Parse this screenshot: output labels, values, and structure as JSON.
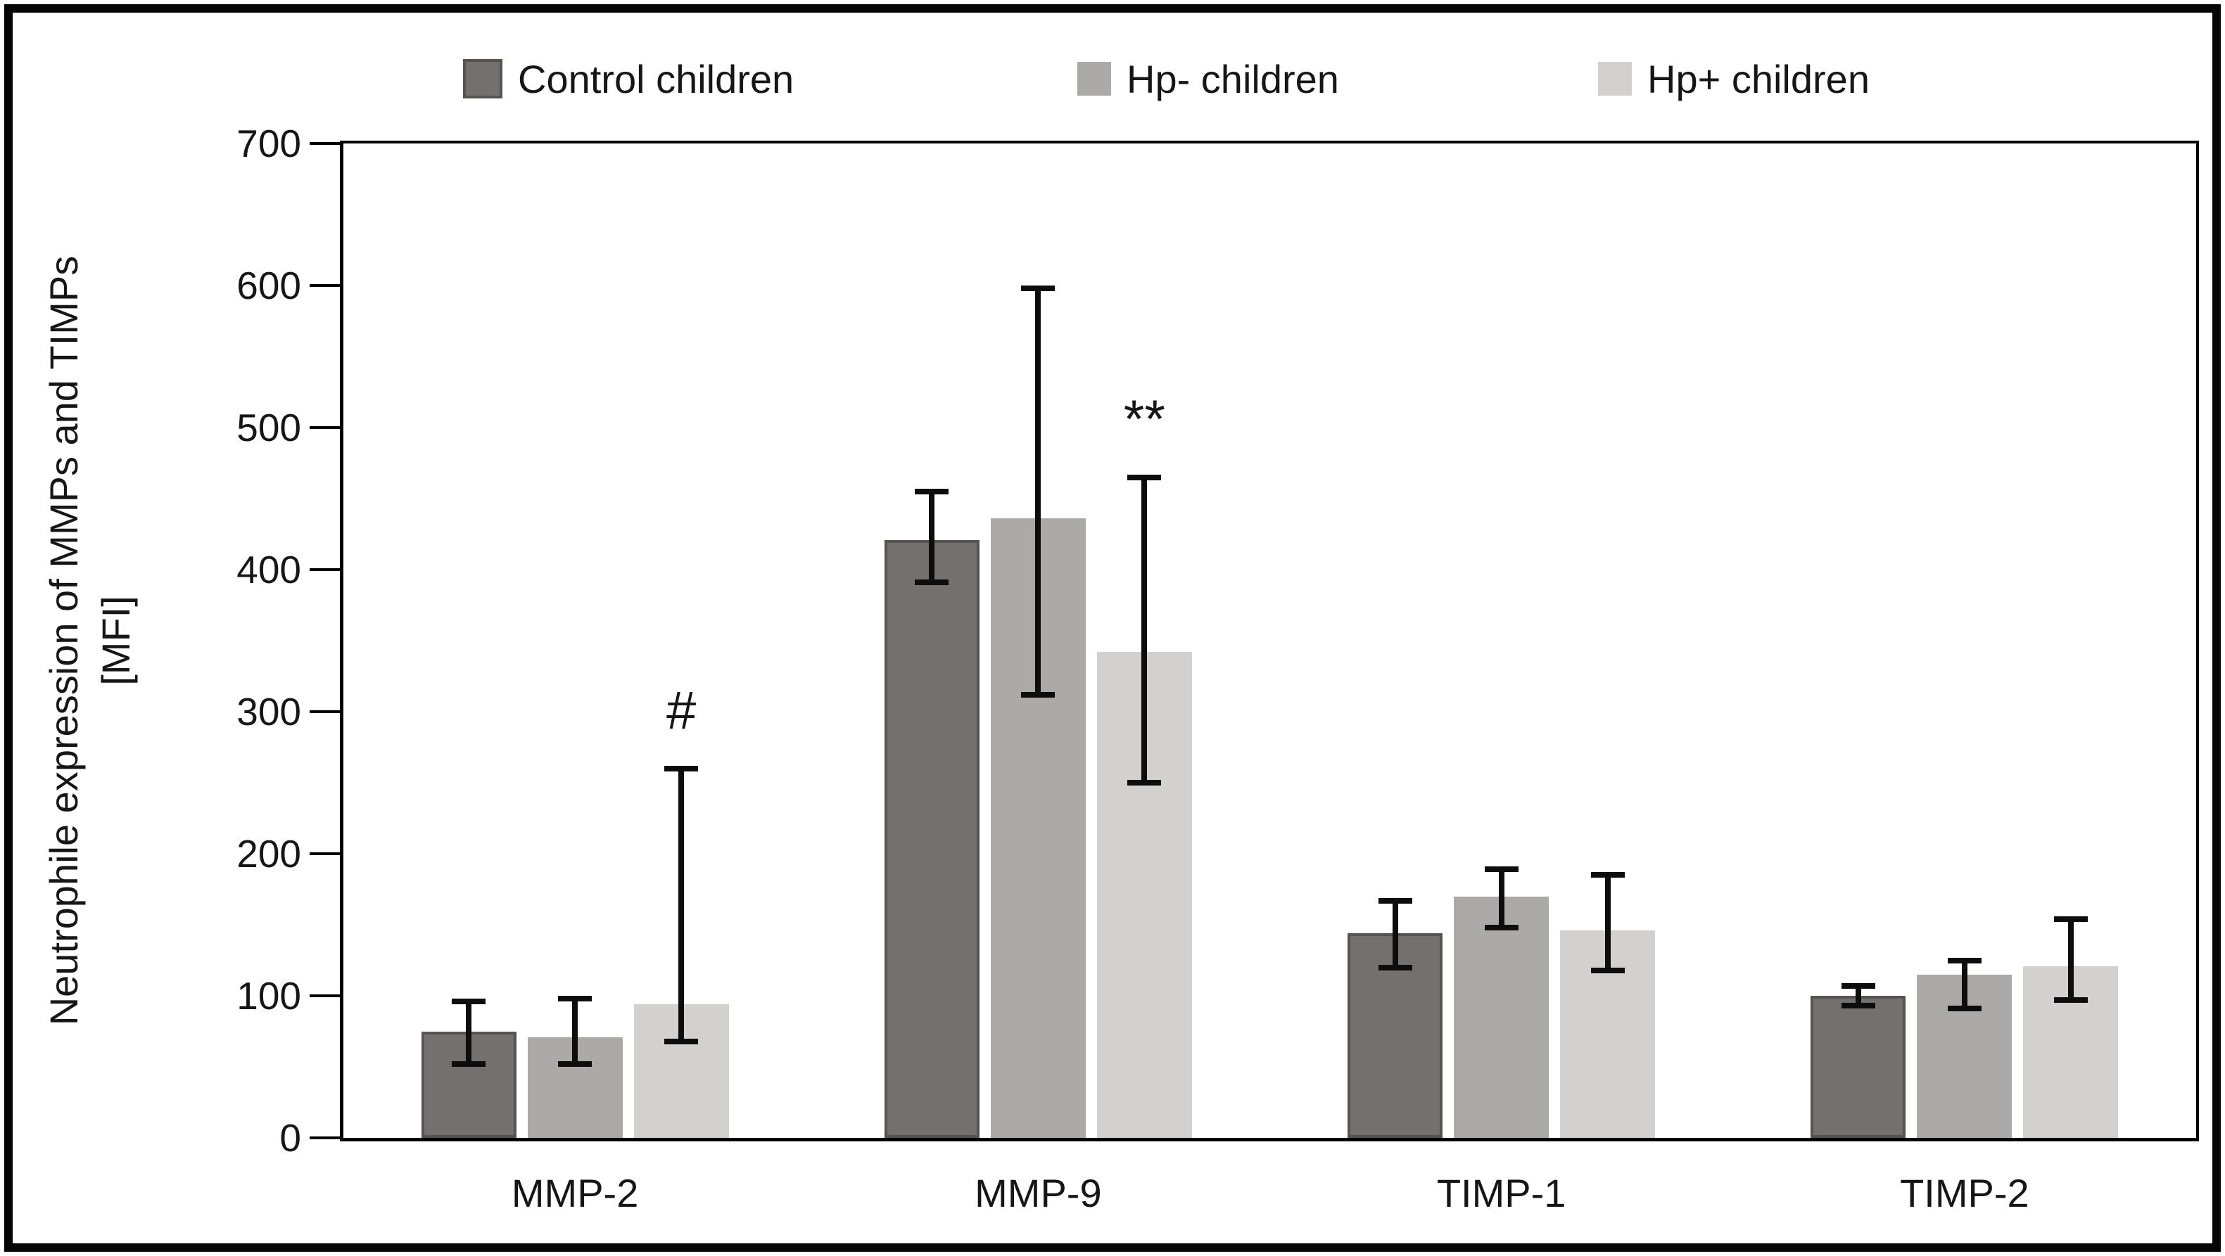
{
  "figure": {
    "background": "#ffffff",
    "border_color": "#060606",
    "axis_color": "#000000",
    "text_color": "#161616"
  },
  "chart_data": {
    "type": "bar",
    "title": "",
    "categories": [
      "MMP-2",
      "MMP-9",
      "TIMP-1",
      "TIMP-2"
    ],
    "series": [
      {
        "name": "Control children",
        "color": "#747070",
        "border": "#575353",
        "values": [
          75,
          421,
          144,
          100
        ],
        "whisker_low": [
          52,
          391,
          120,
          93
        ],
        "whisker_high": [
          96,
          455,
          167,
          107
        ]
      },
      {
        "name": "Hp- children",
        "color": "#acaaa9",
        "border": null,
        "values": [
          71,
          436,
          170,
          115
        ],
        "whisker_low": [
          52,
          312,
          148,
          91
        ],
        "whisker_high": [
          98,
          598,
          189,
          125
        ]
      },
      {
        "name": "Hp+ children",
        "color": "#d2d1d0",
        "border": null,
        "values": [
          94,
          342,
          146,
          121
        ],
        "whisker_low": [
          68,
          250,
          118,
          97
        ],
        "whisker_high": [
          260,
          465,
          185,
          154
        ]
      }
    ],
    "annotations": [
      {
        "text": "#",
        "category": "MMP-2",
        "series": "Hp+ children",
        "y_value": 300
      },
      {
        "text": "**",
        "category": "MMP-9",
        "series": "Hp+ children",
        "y_value": 505
      }
    ],
    "ylabel_line1": "Neutrophile expression of MMPs and TIMPs",
    "ylabel_line2": "[MFI]",
    "ylim": [
      0,
      700
    ],
    "yticks": [
      0,
      100,
      200,
      300,
      400,
      500,
      600,
      700
    ],
    "grid": false,
    "legend_position": "top",
    "error_bar_color": "#0d0d0d"
  }
}
